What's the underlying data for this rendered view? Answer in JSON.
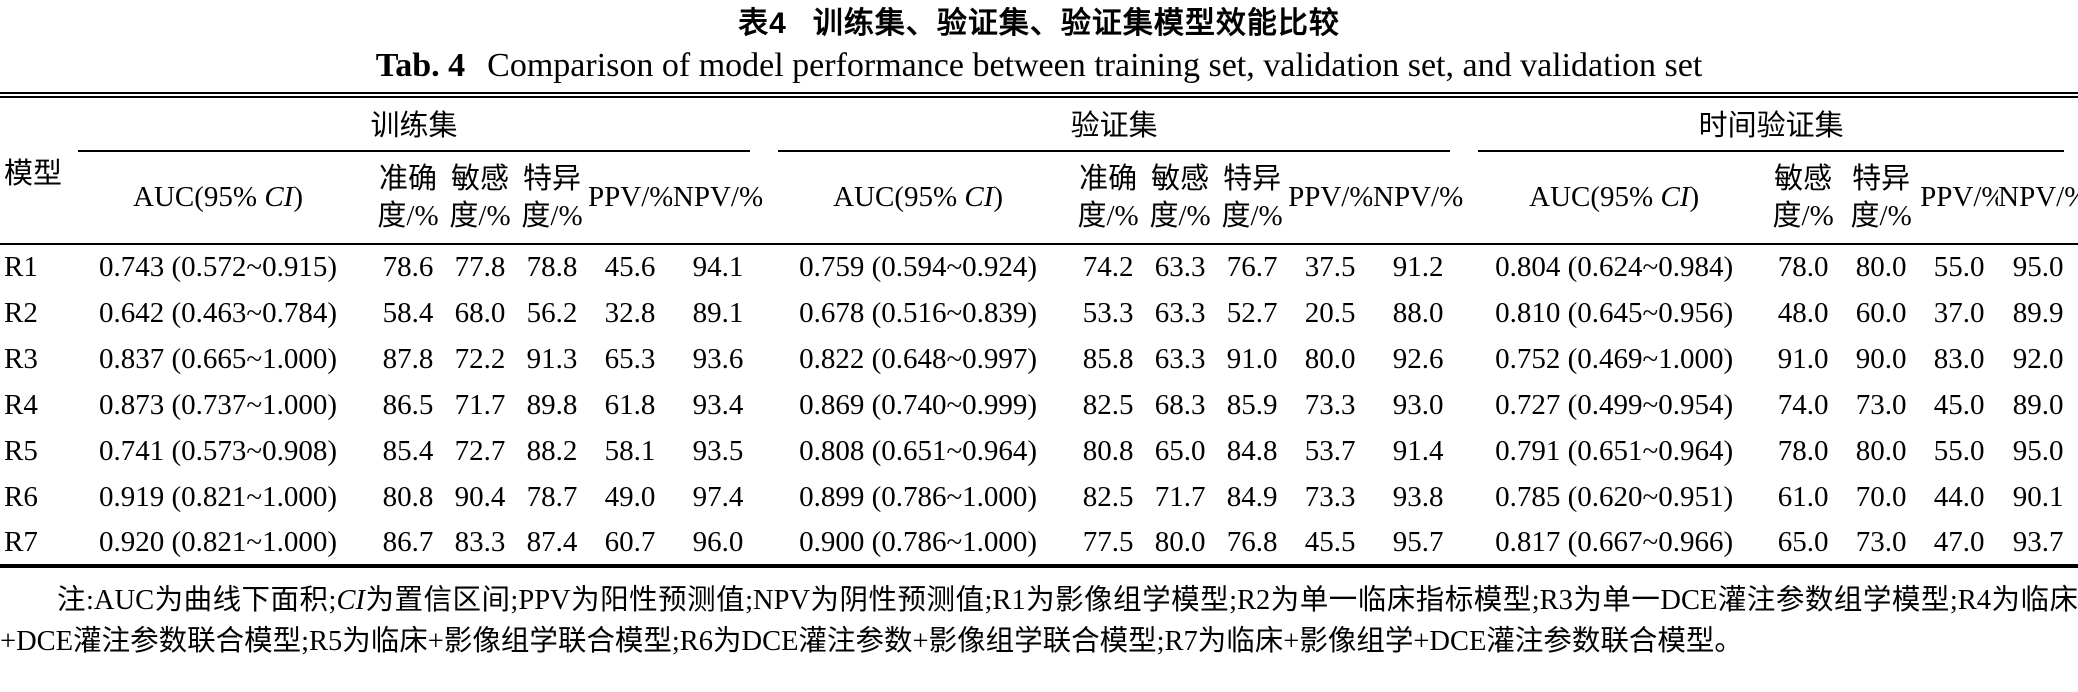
{
  "title": {
    "zh_label": "表4",
    "zh_text": "训练集、验证集、验证集模型效能比较",
    "en_label": "Tab. 4",
    "en_text": "Comparison of model performance between training set, validation set, and validation set"
  },
  "table": {
    "model_header": "模型",
    "auc_header": {
      "prefix": "AUC(95% ",
      "italic": "CI",
      "suffix": ")"
    },
    "groups": [
      {
        "label": "训练集",
        "subcols": [
          "准确\n度/%",
          "敏感\n度/%",
          "特异\n度/%",
          "PPV/%",
          "NPV/%"
        ]
      },
      {
        "label": "验证集",
        "subcols": [
          "准确\n度/%",
          "敏感\n度/%",
          "特异\n度/%",
          "PPV/%",
          "NPV/%"
        ]
      },
      {
        "label": "时间验证集",
        "subcols": [
          "敏感\n度/%",
          "特异\n度/%",
          "PPV/%",
          "NPV/%"
        ]
      }
    ],
    "rows": [
      {
        "model": "R1",
        "training": [
          "0.743 (0.572~0.915)",
          "78.6",
          "77.8",
          "78.8",
          "45.6",
          "94.1"
        ],
        "validation": [
          "0.759 (0.594~0.924)",
          "74.2",
          "63.3",
          "76.7",
          "37.5",
          "91.2"
        ],
        "time_validation": [
          "0.804 (0.624~0.984)",
          "78.0",
          "80.0",
          "55.0",
          "95.0"
        ]
      },
      {
        "model": "R2",
        "training": [
          "0.642 (0.463~0.784)",
          "58.4",
          "68.0",
          "56.2",
          "32.8",
          "89.1"
        ],
        "validation": [
          "0.678 (0.516~0.839)",
          "53.3",
          "63.3",
          "52.7",
          "20.5",
          "88.0"
        ],
        "time_validation": [
          "0.810 (0.645~0.956)",
          "48.0",
          "60.0",
          "37.0",
          "89.9"
        ]
      },
      {
        "model": "R3",
        "training": [
          "0.837 (0.665~1.000)",
          "87.8",
          "72.2",
          "91.3",
          "65.3",
          "93.6"
        ],
        "validation": [
          "0.822 (0.648~0.997)",
          "85.8",
          "63.3",
          "91.0",
          "80.0",
          "92.6"
        ],
        "time_validation": [
          "0.752 (0.469~1.000)",
          "91.0",
          "90.0",
          "83.0",
          "92.0"
        ]
      },
      {
        "model": "R4",
        "training": [
          "0.873 (0.737~1.000)",
          "86.5",
          "71.7",
          "89.8",
          "61.8",
          "93.4"
        ],
        "validation": [
          "0.869 (0.740~0.999)",
          "82.5",
          "68.3",
          "85.9",
          "73.3",
          "93.0"
        ],
        "time_validation": [
          "0.727 (0.499~0.954)",
          "74.0",
          "73.0",
          "45.0",
          "89.0"
        ]
      },
      {
        "model": "R5",
        "training": [
          "0.741 (0.573~0.908)",
          "85.4",
          "72.7",
          "88.2",
          "58.1",
          "93.5"
        ],
        "validation": [
          "0.808 (0.651~0.964)",
          "80.8",
          "65.0",
          "84.8",
          "53.7",
          "91.4"
        ],
        "time_validation": [
          "0.791 (0.651~0.964)",
          "78.0",
          "80.0",
          "55.0",
          "95.0"
        ]
      },
      {
        "model": "R6",
        "training": [
          "0.919 (0.821~1.000)",
          "80.8",
          "90.4",
          "78.7",
          "49.0",
          "97.4"
        ],
        "validation": [
          "0.899 (0.786~1.000)",
          "82.5",
          "71.7",
          "84.9",
          "73.3",
          "93.8"
        ],
        "time_validation": [
          "0.785 (0.620~0.951)",
          "61.0",
          "70.0",
          "44.0",
          "90.1"
        ]
      },
      {
        "model": "R7",
        "training": [
          "0.920 (0.821~1.000)",
          "86.7",
          "83.3",
          "87.4",
          "60.7",
          "96.0"
        ],
        "validation": [
          "0.900 (0.786~1.000)",
          "77.5",
          "80.0",
          "76.8",
          "45.5",
          "95.7"
        ],
        "time_validation": [
          "0.817 (0.667~0.966)",
          "65.0",
          "73.0",
          "47.0",
          "93.7"
        ]
      }
    ]
  },
  "footnote": {
    "part1": "注:AUC为曲线下面积;",
    "ci": "CI",
    "part2": "为置信区间;PPV为阳性预测值;NPV为阴性预测值;R1为影像组学模型;R2为单一临床指标模型;R3为单一DCE灌注参数组学模型;R4为临床+DCE灌注参数联合模型;R5为临床+影像组学联合模型;R6为DCE灌注参数+影像组学联合模型;R7为临床+影像组学+DCE灌注参数联合模型。"
  }
}
